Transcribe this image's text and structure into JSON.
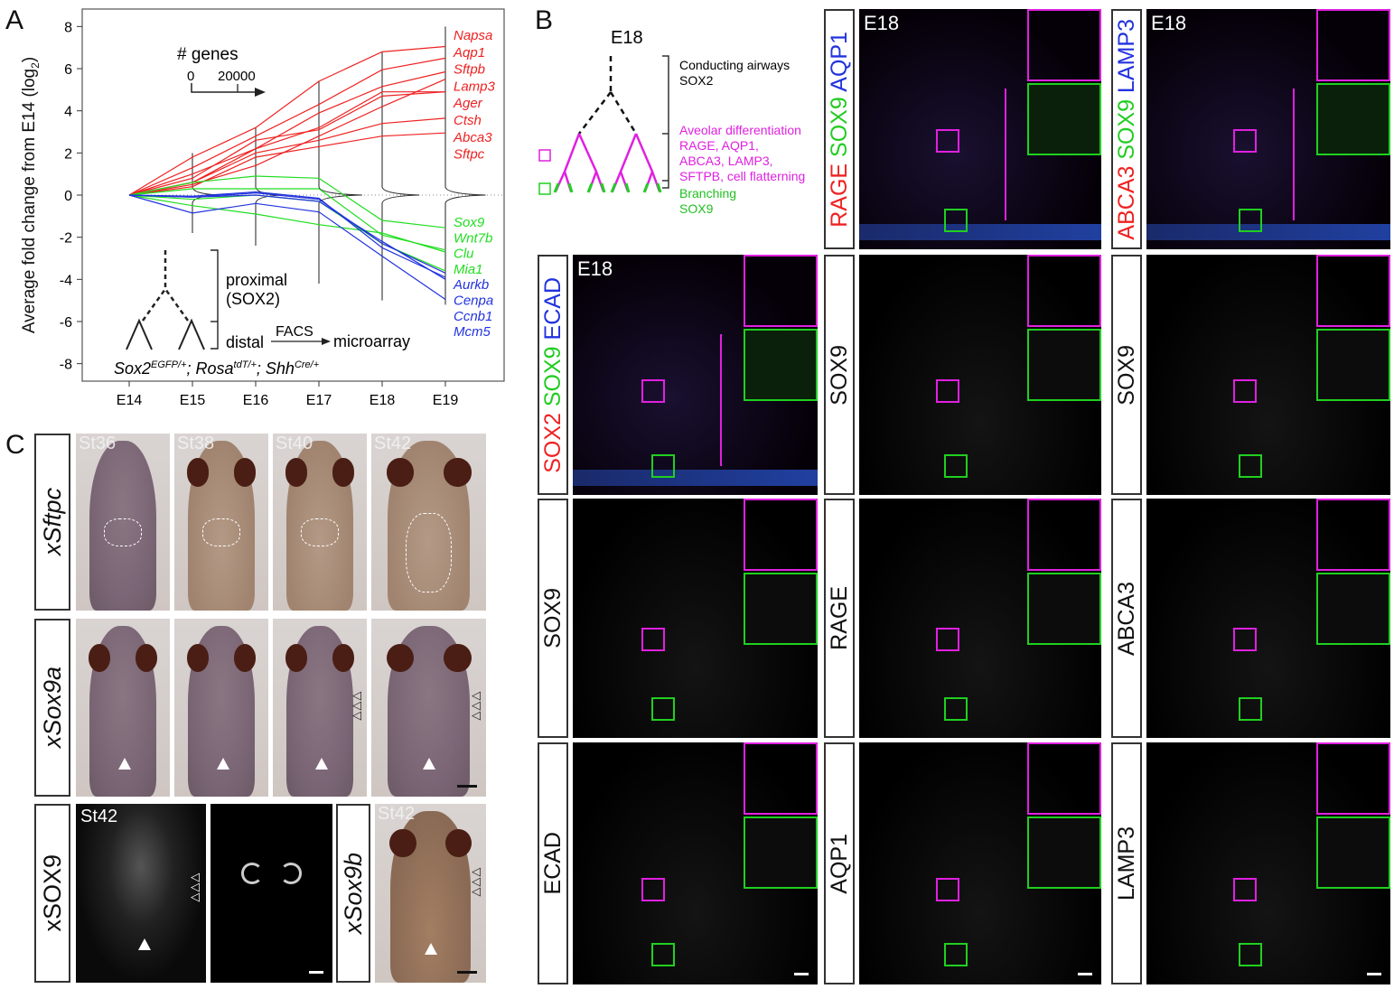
{
  "panels": {
    "A": "A",
    "B": "B",
    "C": "C"
  },
  "chart_data": {
    "type": "line",
    "ylabel": "Average fold change from E14 (log",
    "ylabel_sub": "2",
    "ylabel_end": ")",
    "categories": [
      "E14",
      "E15",
      "E16",
      "E17",
      "E18",
      "E19"
    ],
    "ylim": [
      -8,
      8
    ],
    "yticks": [
      8,
      6,
      4,
      2,
      0,
      -2,
      -4,
      -6,
      -8
    ],
    "zero_line": "dotted",
    "series": [
      {
        "name": "Napsa",
        "group": "red",
        "values": [
          0,
          1.8,
          3.2,
          5.4,
          6.8,
          7.05
        ]
      },
      {
        "name": "Aqp1",
        "group": "red",
        "values": [
          0,
          1.3,
          2.8,
          4.3,
          5.95,
          6.5
        ]
      },
      {
        "name": "Sftpb",
        "group": "red",
        "values": [
          0,
          0.6,
          2.2,
          3.9,
          5.15,
          5.85
        ]
      },
      {
        "name": "Lamp3",
        "group": "red",
        "values": [
          0,
          0.5,
          1.4,
          2.8,
          4.2,
          5.5
        ]
      },
      {
        "name": "Ager",
        "group": "red",
        "values": [
          0,
          1.0,
          2.2,
          3.2,
          4.9,
          4.9
        ]
      },
      {
        "name": "Ctsh",
        "group": "red",
        "values": [
          0,
          0.8,
          2.6,
          3.1,
          4.7,
          4.9
        ]
      },
      {
        "name": "Abca3",
        "group": "red",
        "values": [
          0,
          0.6,
          2.0,
          2.6,
          3.4,
          3.65
        ]
      },
      {
        "name": "Sftpc",
        "group": "red",
        "values": [
          0,
          0.4,
          1.8,
          2.3,
          2.8,
          2.95
        ]
      },
      {
        "name": "Sox9",
        "group": "green",
        "values": [
          0,
          0.6,
          0.9,
          0.8,
          -1.2,
          -1.55
        ]
      },
      {
        "name": "Wnt7b",
        "group": "green",
        "values": [
          0,
          0.3,
          0.3,
          0.3,
          -1.9,
          -2.6
        ]
      },
      {
        "name": "Clu",
        "group": "green",
        "values": [
          0,
          -0.5,
          -0.9,
          -1.4,
          -1.8,
          -2.7
        ]
      },
      {
        "name": "Mia1",
        "group": "green",
        "values": [
          0,
          -0.2,
          0,
          -0.3,
          -2.3,
          -3.6
        ]
      },
      {
        "name": "Aurkb",
        "group": "blue",
        "values": [
          0,
          -0.1,
          0.1,
          -0.2,
          -2.3,
          -3.7
        ]
      },
      {
        "name": "Cenpa",
        "group": "blue",
        "values": [
          0,
          -0.05,
          0.15,
          -0.15,
          -2.5,
          -3.9
        ]
      },
      {
        "name": "Ccnb1",
        "group": "blue",
        "values": [
          0,
          -0.85,
          -0.4,
          -0.8,
          -2.9,
          -4.95
        ]
      },
      {
        "name": "Mcm5",
        "group": "blue",
        "values": [
          0,
          -0.1,
          0,
          -0.3,
          -2.2,
          -4.0
        ]
      }
    ],
    "group_colors": {
      "red": "#ee2222",
      "green": "#22dd22",
      "blue": "#2233dd"
    },
    "density_distributions": [
      {
        "time": "E15",
        "range": [
          -1.8,
          2.0
        ],
        "peak_genes": 9000
      },
      {
        "time": "E16",
        "range": [
          -2.4,
          3.2
        ],
        "peak_genes": 9000
      },
      {
        "time": "E17",
        "range": [
          -4.2,
          5.4
        ],
        "peak_genes": 14500
      },
      {
        "time": "E18",
        "range": [
          -5.0,
          6.8
        ],
        "peak_genes": 12500
      },
      {
        "time": "E19",
        "range": [
          -5.2,
          8.0
        ],
        "peak_genes": 13500
      }
    ],
    "density_scale": {
      "title": "# genes",
      "ticks": [
        0,
        20000
      ]
    },
    "annotations": {
      "proximal": "proximal",
      "sox2": "(SOX2)",
      "distal": "distal",
      "facs": "FACS",
      "microarray": "microarray",
      "genotype": [
        {
          "base": "Sox2",
          "sup": "EGFP/+",
          "sep": "; "
        },
        {
          "base": "Rosa",
          "sup": "tdT/+",
          "sep": "; "
        },
        {
          "base": "Shh",
          "sup": "Cre/+",
          "sep": ""
        }
      ]
    }
  },
  "diagram_B": {
    "title": "E18",
    "conducting": "Conducting airways",
    "sox2": "SOX2",
    "alveolar": [
      "Aveolar differentiation",
      "RAGE, AQP1,",
      "ABCA3, LAMP3,",
      "SFTPB, cell flatterning"
    ],
    "branching": "Branching",
    "sox9": "SOX9",
    "colors": {
      "magenta": "#e020e0",
      "green": "#20d020"
    }
  },
  "grid_B": {
    "timepoint": "E18",
    "cells": [
      {
        "id": "c2r1",
        "label": [
          {
            "t": "RAGE",
            "c": "#ee2222"
          },
          {
            "t": " SOX9",
            "c": "#22cc22"
          },
          {
            "t": " AQP1",
            "c": "#2233dd"
          }
        ],
        "merged": true
      },
      {
        "id": "c3r1",
        "label": [
          {
            "t": "ABCA3",
            "c": "#ee2222"
          },
          {
            "t": " SOX9",
            "c": "#22cc22"
          },
          {
            "t": " LAMP3",
            "c": "#2233dd"
          }
        ],
        "merged": true
      },
      {
        "id": "c1r2",
        "label": [
          {
            "t": "SOX2",
            "c": "#ee2222"
          },
          {
            "t": " SOX9",
            "c": "#22cc22"
          },
          {
            "t": " ECAD",
            "c": "#2233dd"
          }
        ],
        "merged": true
      },
      {
        "id": "c2r2",
        "label": [
          {
            "t": "SOX9",
            "c": "#111"
          }
        ]
      },
      {
        "id": "c3r2",
        "label": [
          {
            "t": "SOX9",
            "c": "#111"
          }
        ]
      },
      {
        "id": "c1r3",
        "label": [
          {
            "t": "SOX9",
            "c": "#111"
          }
        ]
      },
      {
        "id": "c2r3",
        "label": [
          {
            "t": "RAGE",
            "c": "#111"
          }
        ]
      },
      {
        "id": "c3r3",
        "label": [
          {
            "t": "ABCA3",
            "c": "#111"
          }
        ]
      },
      {
        "id": "c1r4",
        "label": [
          {
            "t": "ECAD",
            "c": "#111"
          }
        ]
      },
      {
        "id": "c2r4",
        "label": [
          {
            "t": "AQP1",
            "c": "#111"
          }
        ]
      },
      {
        "id": "c3r4",
        "label": [
          {
            "t": "LAMP3",
            "c": "#111"
          }
        ]
      }
    ]
  },
  "panel_C": {
    "stages": [
      "St36",
      "St38",
      "St40",
      "St42"
    ],
    "rows": [
      {
        "label": "xSftpc"
      },
      {
        "label": "xSox9a"
      },
      {
        "label": "xSOX9"
      },
      {
        "label": "xSox9b"
      }
    ],
    "st42": "St42"
  }
}
